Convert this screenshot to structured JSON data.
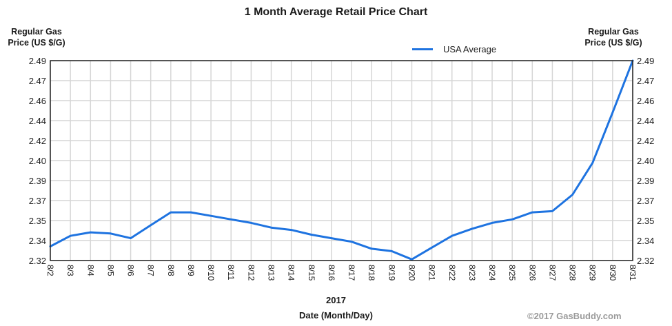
{
  "chart": {
    "title": "1 Month Average Retail Price Chart",
    "left_axis_title_line1": "Regular Gas",
    "left_axis_title_line2": "Price (US $/G)",
    "right_axis_title_line1": "Regular Gas",
    "right_axis_title_line2": "Price (US $/G)",
    "legend_label": "USA Average",
    "year_label": "2017",
    "x_axis_title": "Date (Month/Day)",
    "copyright": "©2017 GasBuddy.com",
    "line_color": "#1e73e0",
    "grid_color": "#d6d6d6"
  },
  "chart_data": {
    "type": "line",
    "title": "1 Month Average Retail Price Chart",
    "xlabel": "Date (Month/Day)",
    "xlabel_sub": "2017",
    "ylabel": "Regular Gas Price (US $/G)",
    "ylabel_right": "Regular Gas Price (US $/G)",
    "ylim": [
      2.32,
      2.49
    ],
    "yticks": [
      "2.32",
      "2.34",
      "2.35",
      "2.37",
      "2.39",
      "2.40",
      "2.42",
      "2.44",
      "2.46",
      "2.47",
      "2.49"
    ],
    "grid": true,
    "legend_position": "top-right",
    "categories": [
      "8/2",
      "8/3",
      "8/4",
      "8/5",
      "8/6",
      "8/7",
      "8/8",
      "8/9",
      "8/10",
      "8/11",
      "8/12",
      "8/13",
      "8/14",
      "8/15",
      "8/16",
      "8/17",
      "8/18",
      "8/19",
      "8/20",
      "8/21",
      "8/22",
      "8/23",
      "8/24",
      "8/25",
      "8/26",
      "8/27",
      "8/28",
      "8/29",
      "8/30",
      "8/31"
    ],
    "series": [
      {
        "name": "USA Average",
        "color": "#1e73e0",
        "values": [
          2.332,
          2.341,
          2.344,
          2.343,
          2.339,
          2.35,
          2.361,
          2.361,
          2.358,
          2.355,
          2.352,
          2.348,
          2.346,
          2.342,
          2.339,
          2.336,
          2.33,
          2.328,
          2.321,
          2.331,
          2.341,
          2.347,
          2.352,
          2.355,
          2.361,
          2.362,
          2.376,
          2.403,
          2.446,
          2.49
        ]
      }
    ]
  }
}
